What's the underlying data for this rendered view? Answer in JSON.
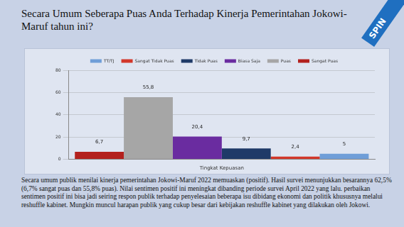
{
  "title": "Secara Umum Seberapa Puas Anda Terhadap Kinerja Pemerintahan Jokowi-Maruf tahun ini?",
  "logo": "SPIN",
  "description": "Secara umum publik menilai kinerja pemerintahan Jokowi-Maruf 2022  memuaskan (positif). Hasil survei menunjukkan besarannya  62,5% (6,7% sangat puas dan 55,8% puas). Nilai sentimen positif ini meningkat dibanding periode survei April 2022 yang lalu. perbaikan sentimen positif ini bisa jadi seiring respon publik terhadap penyelesaian beberapa isu dibidang ekonomi dan politik khususnya melalui reshuffle kabinet. Mungkin muncul harapan publik yang cukup besar dari kebijakan reshuffle kabinet yang dilakukan oleh Jokowi.",
  "chart_data": {
    "type": "bar",
    "categories": [
      "Tingkat Kepuasan"
    ],
    "series": [
      {
        "name": "Sangat Puas",
        "color": "#b3211e",
        "values": [
          6.7
        ],
        "value_labels": [
          "6,7"
        ]
      },
      {
        "name": "Puas",
        "color": "#a6a6a6",
        "values": [
          55.8
        ],
        "value_labels": [
          "55,8"
        ]
      },
      {
        "name": "Biasa Saja",
        "color": "#6a2ca0",
        "values": [
          20.4
        ],
        "value_labels": [
          "20,4"
        ]
      },
      {
        "name": "Tidak Puas",
        "color": "#1f3a68",
        "values": [
          9.7
        ],
        "value_labels": [
          "9,7"
        ]
      },
      {
        "name": "Sangat Tidak Puas",
        "color": "#d2372a",
        "values": [
          2.4
        ],
        "value_labels": [
          "2,4"
        ]
      },
      {
        "name": "TT/TJ",
        "color": "#6f9ed8",
        "values": [
          5
        ]
      }
    ],
    "ylim": [
      0,
      80
    ],
    "yticks": [
      0,
      20,
      40,
      60,
      80
    ],
    "grid": true,
    "legend": "top",
    "data_labels": true
  }
}
